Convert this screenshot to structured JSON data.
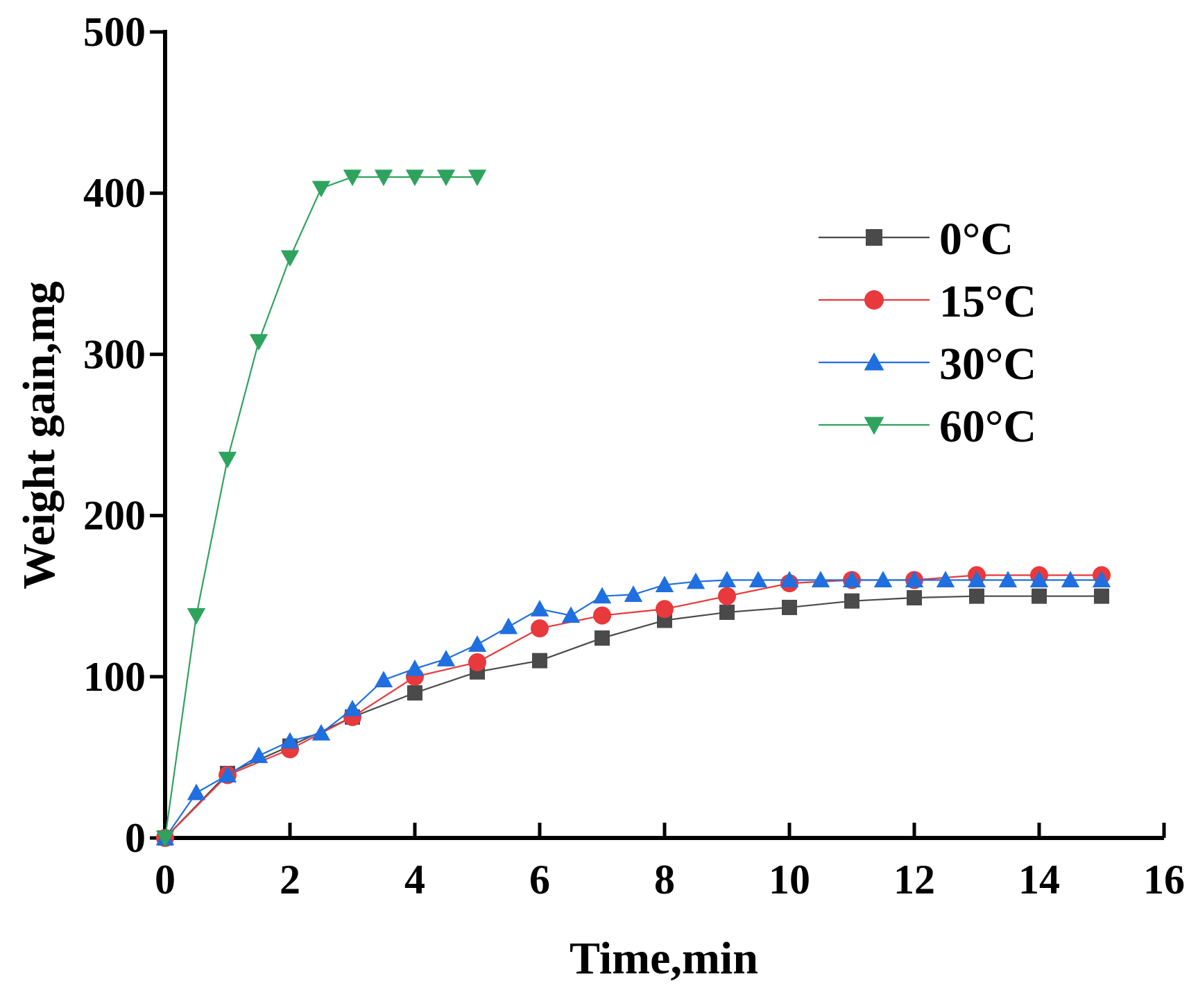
{
  "chart_data": {
    "type": "line",
    "title": "",
    "xlabel": "Time,min",
    "ylabel": "Weight gain,mg",
    "xlim": [
      0,
      16
    ],
    "ylim": [
      0,
      500
    ],
    "xticks": [
      0,
      2,
      4,
      6,
      8,
      10,
      12,
      14,
      16
    ],
    "yticks": [
      0,
      100,
      200,
      300,
      400,
      500
    ],
    "legend_position": "upper-right",
    "grid": false,
    "series": [
      {
        "name": "0°C",
        "color": "#4a4a4a",
        "marker": "square",
        "x": [
          0,
          1,
          2,
          3,
          4,
          5,
          6,
          7,
          8,
          9,
          10,
          11,
          12,
          13,
          14,
          15
        ],
        "y": [
          0,
          40,
          57,
          75,
          90,
          103,
          110,
          124,
          135,
          140,
          143,
          147,
          149,
          150,
          150,
          150
        ]
      },
      {
        "name": "15°C",
        "color": "#e8393c",
        "marker": "circle",
        "x": [
          0,
          1,
          2,
          3,
          4,
          5,
          6,
          7,
          8,
          9,
          10,
          11,
          12,
          13,
          14,
          15
        ],
        "y": [
          0,
          39,
          55,
          75,
          100,
          109,
          130,
          138,
          142,
          150,
          158,
          160,
          160,
          163,
          163,
          163
        ]
      },
      {
        "name": "30°C",
        "color": "#1f6fe0",
        "marker": "triangle-up",
        "x": [
          0,
          0.5,
          1,
          1.5,
          2,
          2.5,
          3,
          3.5,
          4,
          4.5,
          5,
          5.5,
          6,
          6.5,
          7,
          7.5,
          8,
          8.5,
          9,
          9.5,
          10,
          10.5,
          11,
          11.5,
          12,
          12.5,
          13,
          13.5,
          14,
          14.5,
          15
        ],
        "y": [
          0,
          28,
          39,
          51,
          60,
          65,
          80,
          98,
          105,
          111,
          120,
          131,
          142,
          138,
          150,
          151,
          157,
          159,
          160,
          160,
          160,
          160,
          160,
          160,
          160,
          160,
          160,
          160,
          160,
          160,
          160
        ]
      },
      {
        "name": "60°C",
        "color": "#2ea35d",
        "marker": "triangle-down",
        "x": [
          0,
          0.5,
          1,
          1.5,
          2,
          2.5,
          3,
          3.5,
          4,
          4.5,
          5
        ],
        "y": [
          0,
          138,
          235,
          308,
          360,
          403,
          410,
          410,
          410,
          410,
          410
        ]
      }
    ]
  }
}
